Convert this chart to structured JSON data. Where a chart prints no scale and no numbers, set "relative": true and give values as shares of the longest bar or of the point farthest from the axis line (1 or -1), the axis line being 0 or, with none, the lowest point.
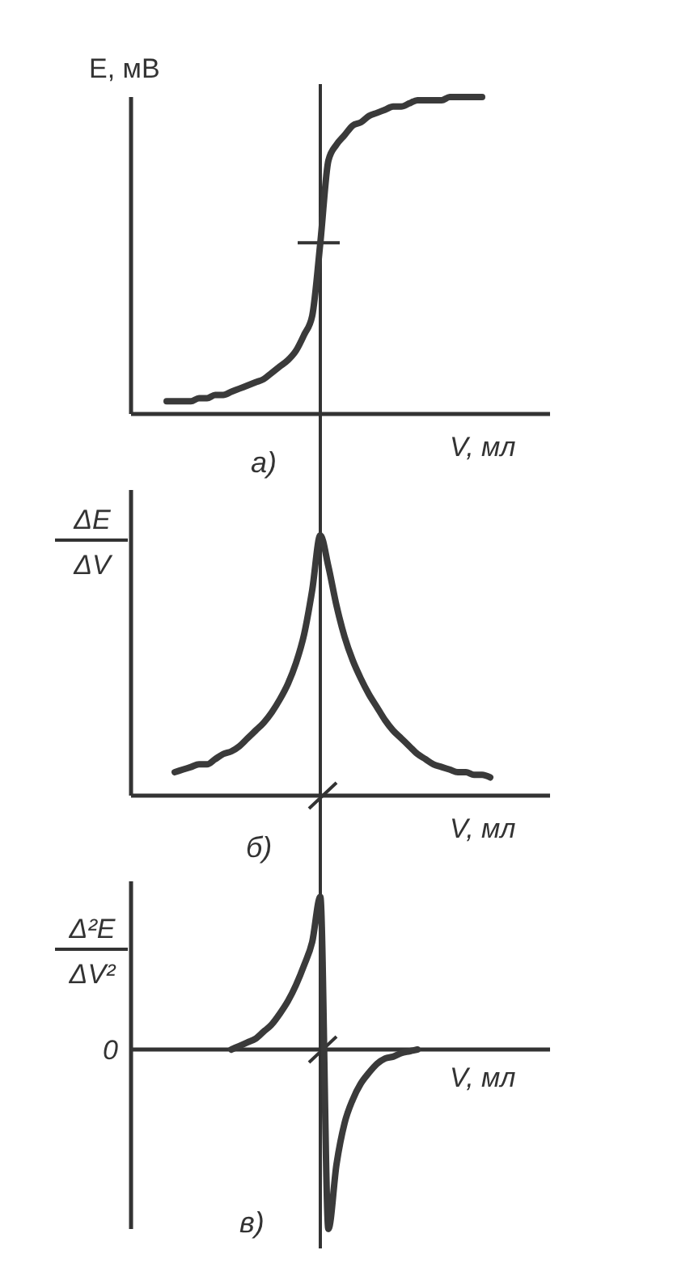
{
  "chart_data": [
    {
      "type": "line",
      "relative": true,
      "ylabel": "E, мВ",
      "xlabel": "V, мл",
      "annotations": [
        "а)"
      ],
      "categories": [
        null,
        null,
        null,
        null,
        null,
        null,
        null,
        null,
        null,
        null,
        null,
        null,
        null,
        null,
        null,
        null,
        null,
        null,
        null,
        null,
        null,
        null,
        null,
        null,
        null,
        null,
        null,
        null,
        null,
        null,
        null,
        null,
        null,
        null,
        null,
        null,
        null,
        null,
        null,
        null,
        null,
        null,
        null,
        null,
        null
      ],
      "series": [
        {
          "color": "#3a3a3a",
          "values": [
            null,
            null,
            null,
            0.04,
            0.04,
            0.04,
            0.04,
            0.05,
            0.05,
            0.06,
            0.06,
            0.07,
            0.08,
            0.09,
            0.1,
            0.11,
            0.13,
            0.15,
            0.17,
            0.2,
            0.25,
            0.31,
            0.54,
            0.8,
            0.85,
            0.88,
            0.91,
            0.92,
            0.94,
            0.95,
            0.96,
            0.97,
            0.97,
            0.98,
            0.99,
            0.99,
            0.99,
            0.99,
            1,
            1,
            1,
            1,
            1,
            null,
            null
          ]
        }
      ]
    },
    {
      "type": "line",
      "relative": true,
      "ylabel": "ΔE\nΔV",
      "xlabel": "V, мл",
      "annotations": [
        "б)"
      ],
      "categories": [
        null,
        null,
        null,
        null,
        null,
        null,
        null,
        null,
        null,
        null,
        null,
        null,
        null,
        null,
        null,
        null,
        null,
        null,
        null,
        null,
        null,
        null,
        null,
        null,
        null,
        null,
        null,
        null,
        null,
        null,
        null,
        null,
        null,
        null,
        null,
        null,
        null,
        null,
        null,
        null,
        null,
        null,
        null,
        null,
        null
      ],
      "series": [
        {
          "color": "#3a3a3a",
          "values": [
            null,
            null,
            null,
            null,
            0.09,
            0.1,
            0.11,
            0.12,
            0.12,
            0.14,
            0.16,
            0.17,
            0.19,
            0.22,
            0.25,
            0.28,
            0.32,
            0.37,
            0.43,
            0.51,
            0.62,
            0.79,
            1,
            0.88,
            0.73,
            0.61,
            0.52,
            0.45,
            0.39,
            0.34,
            0.29,
            0.25,
            0.22,
            0.19,
            0.16,
            0.14,
            0.12,
            0.11,
            0.1,
            0.09,
            0.09,
            0.08,
            0.08,
            0.07,
            null
          ]
        }
      ]
    },
    {
      "type": "line",
      "relative": true,
      "ylabel": "Δ²E\nΔV²",
      "xlabel": "V, мл",
      "annotations": [
        "в)",
        "0"
      ],
      "categories": [
        null,
        null,
        null,
        null,
        null,
        null,
        null,
        null,
        null,
        null,
        null,
        null,
        null,
        null,
        null,
        null,
        null,
        null,
        null,
        null,
        null,
        null,
        null,
        null,
        null,
        null,
        null,
        null,
        null,
        null,
        null,
        null,
        null,
        null,
        null,
        null,
        null,
        null,
        null,
        null,
        null,
        null,
        null,
        null,
        null
      ],
      "series": [
        {
          "color": "#3a3a3a",
          "values": [
            null,
            null,
            null,
            null,
            null,
            null,
            null,
            null,
            null,
            null,
            null,
            0,
            0.02,
            0.04,
            0.06,
            0.1,
            0.14,
            0.2,
            0.27,
            0.36,
            0.47,
            0.6,
            0.85,
            -1,
            -0.64,
            -0.41,
            -0.28,
            -0.19,
            -0.13,
            -0.08,
            -0.05,
            -0.04,
            -0.02,
            -0.01,
            0,
            null,
            null,
            null,
            null,
            null,
            null,
            null,
            null,
            null,
            null
          ]
        }
      ]
    }
  ]
}
